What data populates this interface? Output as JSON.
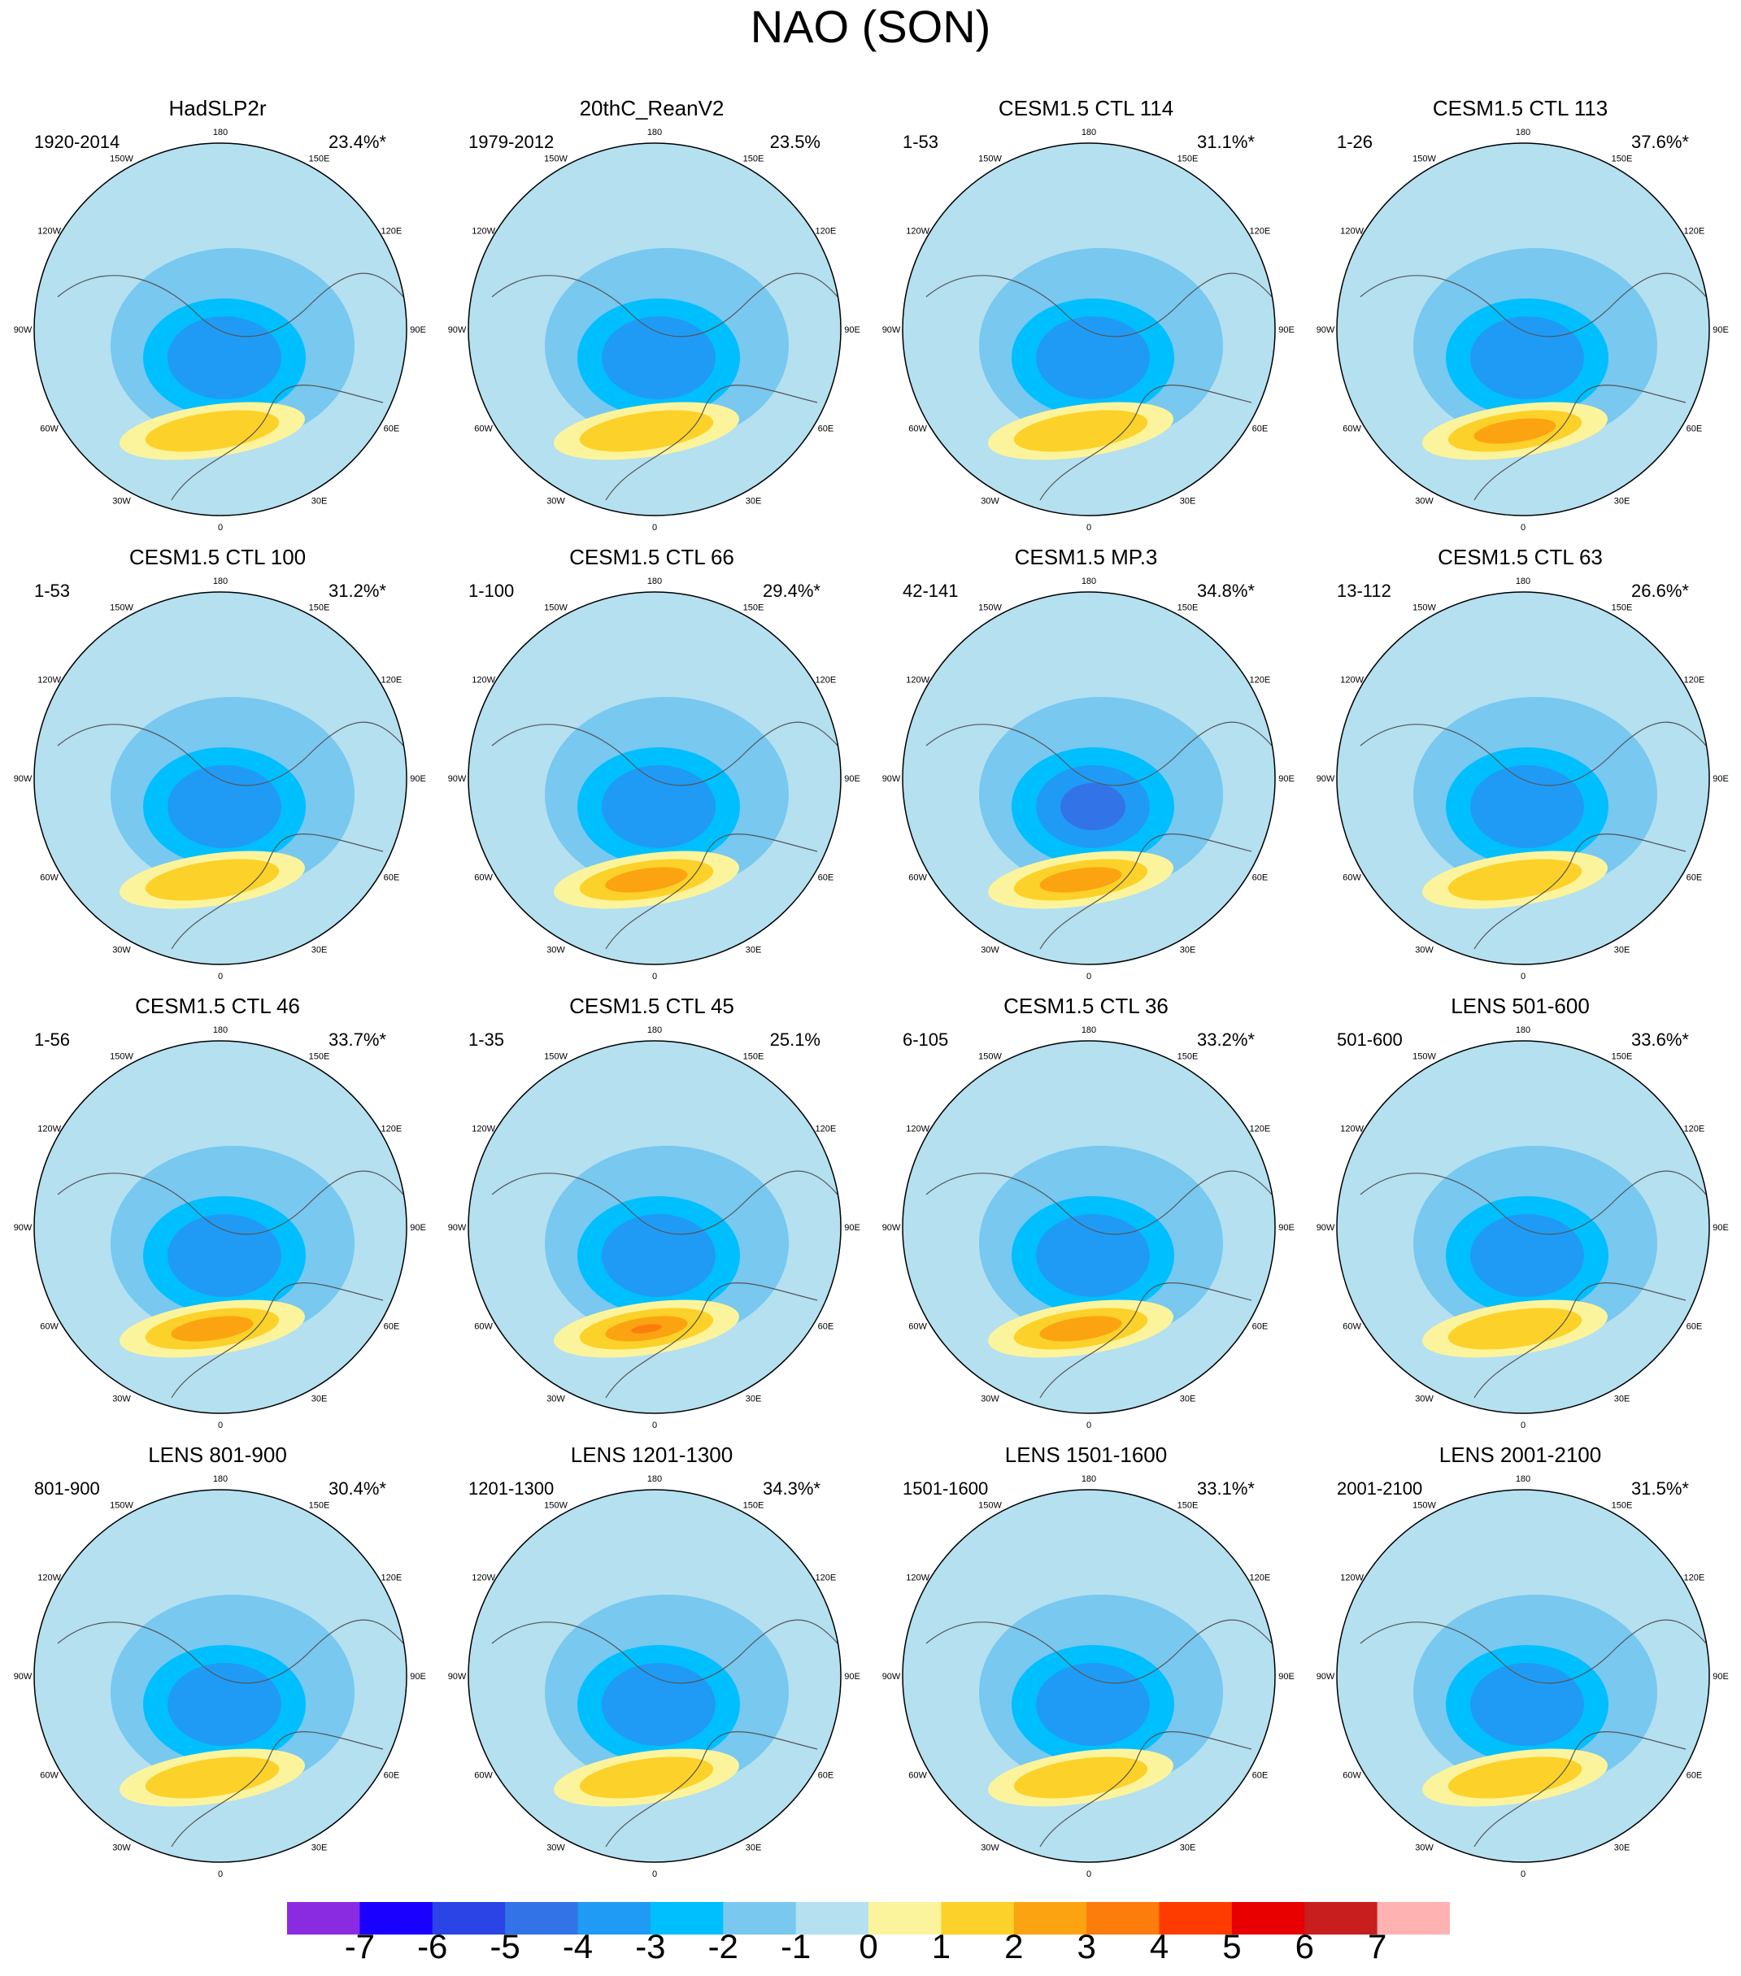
{
  "title": "NAO (SON)",
  "chart_data": {
    "type": "polar contour maps",
    "title": "NAO (SON)",
    "variable": "sea level pressure regression",
    "longitude_labels": [
      "180",
      "150E",
      "120E",
      "90E",
      "60E",
      "30E",
      "0",
      "30W",
      "60W",
      "90W",
      "120W",
      "150W"
    ],
    "colorbar": {
      "labels": [
        "-7",
        "-6",
        "-5",
        "-4",
        "-3",
        "-2",
        "-1",
        "0",
        "1",
        "2",
        "3",
        "4",
        "5",
        "6",
        "7"
      ],
      "colors": [
        "#8a2be2",
        "#1a00ff",
        "#2b44e6",
        "#3373e8",
        "#1f9bf5",
        "#00bfff",
        "#78c8f0",
        "#b4e0f0",
        "#fcf49c",
        "#fcd22a",
        "#fca311",
        "#fc7c0c",
        "#ff3c00",
        "#e80000",
        "#c81e1e",
        "#ffb2b2"
      ]
    },
    "panels": [
      {
        "title": "HadSLP2r",
        "range": "1920-2014",
        "percent": "23.4%*",
        "low_min": -3,
        "high_max": 2
      },
      {
        "title": "20thC_ReanV2",
        "range": "1979-2012",
        "percent": "23.5%",
        "low_min": -3,
        "high_max": 2
      },
      {
        "title": "CESM1.5 CTL 114",
        "range": "1-53",
        "percent": "31.1%*",
        "low_min": -3,
        "high_max": 2
      },
      {
        "title": "CESM1.5 CTL 113",
        "range": "1-26",
        "percent": "37.6%*",
        "low_min": -3,
        "high_max": 3
      },
      {
        "title": "CESM1.5 CTL 100",
        "range": "1-53",
        "percent": "31.2%*",
        "low_min": -3,
        "high_max": 2
      },
      {
        "title": "CESM1.5 CTL 66",
        "range": "1-100",
        "percent": "29.4%*",
        "low_min": -3,
        "high_max": 3
      },
      {
        "title": "CESM1.5 MP.3",
        "range": "42-141",
        "percent": "34.8%*",
        "low_min": -4,
        "high_max": 3
      },
      {
        "title": "CESM1.5 CTL 63",
        "range": "13-112",
        "percent": "26.6%*",
        "low_min": -3,
        "high_max": 2
      },
      {
        "title": "CESM1.5 CTL 46",
        "range": "1-56",
        "percent": "33.7%*",
        "low_min": -3,
        "high_max": 3
      },
      {
        "title": "CESM1.5 CTL 45",
        "range": "1-35",
        "percent": "25.1%",
        "low_min": -3,
        "high_max": 4
      },
      {
        "title": "CESM1.5 CTL 36",
        "range": "6-105",
        "percent": "33.2%*",
        "low_min": -3,
        "high_max": 3
      },
      {
        "title": "LENS 501-600",
        "range": "501-600",
        "percent": "33.6%*",
        "low_min": -3,
        "high_max": 2
      },
      {
        "title": "LENS 801-900",
        "range": "801-900",
        "percent": "30.4%*",
        "low_min": -3,
        "high_max": 2
      },
      {
        "title": "LENS 1201-1300",
        "range": "1201-1300",
        "percent": "34.3%*",
        "low_min": -3,
        "high_max": 2
      },
      {
        "title": "LENS 1501-1600",
        "range": "1501-1600",
        "percent": "33.1%*",
        "low_min": -3,
        "high_max": 2
      },
      {
        "title": "LENS 2001-2100",
        "range": "2001-2100",
        "percent": "31.5%*",
        "low_min": -3,
        "high_max": 2
      }
    ]
  }
}
